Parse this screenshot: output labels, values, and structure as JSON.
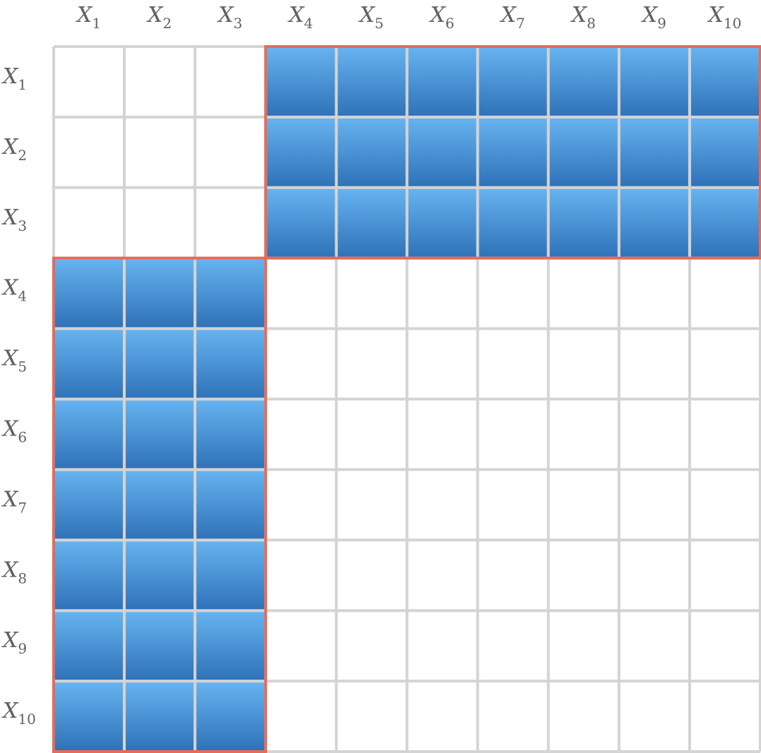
{
  "variables": [
    {
      "base": "X",
      "sub": "1"
    },
    {
      "base": "X",
      "sub": "2"
    },
    {
      "base": "X",
      "sub": "3"
    },
    {
      "base": "X",
      "sub": "4"
    },
    {
      "base": "X",
      "sub": "5"
    },
    {
      "base": "X",
      "sub": "6"
    },
    {
      "base": "X",
      "sub": "7"
    },
    {
      "base": "X",
      "sub": "8"
    },
    {
      "base": "X",
      "sub": "9"
    },
    {
      "base": "X",
      "sub": "10"
    }
  ],
  "filled_blocks": [
    {
      "rows": [
        1,
        3
      ],
      "cols": [
        4,
        10
      ]
    },
    {
      "rows": [
        4,
        10
      ],
      "cols": [
        1,
        3
      ]
    }
  ],
  "colors": {
    "grid_line": "#d4d4d4",
    "cell_fill_top": "#66b3f0",
    "cell_fill_bottom": "#2f72b8",
    "block_outline": "#e86a55",
    "label_text": "#606060"
  }
}
